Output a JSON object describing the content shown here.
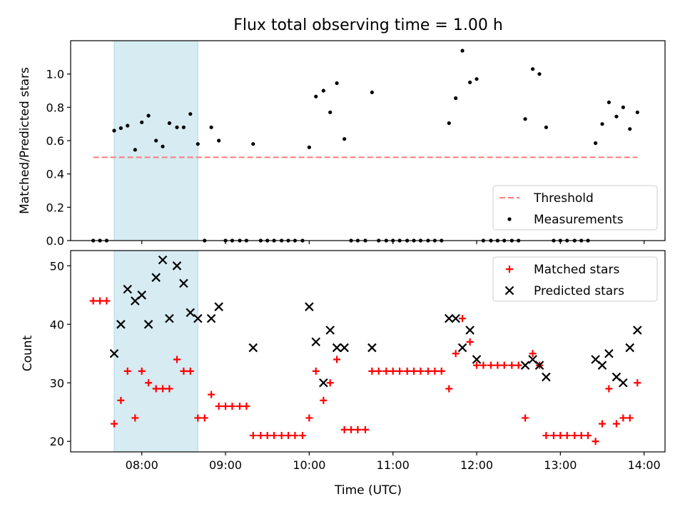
{
  "chart_data": [
    {
      "type": "scatter",
      "title": "Flux total observing time = 1.00 h",
      "xlabel": "",
      "ylabel": "Matched/Predicted stars",
      "xlim": [
        7.15,
        14.25
      ],
      "ylim": [
        0,
        1.2
      ],
      "yticks": [
        0.0,
        0.2,
        0.4,
        0.6,
        0.8,
        1.0
      ],
      "yticklabels": [
        "0.0",
        "0.2",
        "0.4",
        "0.6",
        "0.8",
        "1.0"
      ],
      "shaded_region": [
        7.67,
        8.67
      ],
      "threshold": {
        "name": "Threshold",
        "value": 0.5,
        "x_range": [
          7.42,
          13.92
        ],
        "color": "#f87d78"
      },
      "legend": {
        "position": "lower-right",
        "entries": [
          "Threshold",
          "Measurements"
        ]
      },
      "series": [
        {
          "name": "Measurements",
          "color": "#000000",
          "marker": "dot",
          "x": [
            7.42,
            7.5,
            7.58,
            7.67,
            7.75,
            7.83,
            7.92,
            8.0,
            8.08,
            8.17,
            8.25,
            8.33,
            8.42,
            8.5,
            8.58,
            8.67,
            8.75,
            8.83,
            8.92,
            9.0,
            9.08,
            9.17,
            9.25,
            9.33,
            9.42,
            9.5,
            9.58,
            9.67,
            9.75,
            9.83,
            9.92,
            10.0,
            10.08,
            10.17,
            10.25,
            10.33,
            10.42,
            10.5,
            10.58,
            10.67,
            10.75,
            10.83,
            10.92,
            11.0,
            11.08,
            11.17,
            11.25,
            11.33,
            11.42,
            11.5,
            11.58,
            11.67,
            11.75,
            11.83,
            11.92,
            12.0,
            12.08,
            12.17,
            12.25,
            12.33,
            12.42,
            12.5,
            12.58,
            12.67,
            12.75,
            12.83,
            12.92,
            13.0,
            13.08,
            13.17,
            13.25,
            13.33,
            13.42,
            13.5,
            13.58,
            13.67,
            13.75,
            13.83,
            13.92
          ],
          "y": [
            0.0,
            0.0,
            0.0,
            0.66,
            0.675,
            0.69,
            0.545,
            0.71,
            0.75,
            0.6,
            0.565,
            0.705,
            0.68,
            0.68,
            0.76,
            0.58,
            0.0,
            0.68,
            0.6,
            0.0,
            0.0,
            0.0,
            0.0,
            0.58,
            0.0,
            0.0,
            0.0,
            0.0,
            0.0,
            0.0,
            0.0,
            0.56,
            0.865,
            0.9,
            0.77,
            0.945,
            0.61,
            0.0,
            0.0,
            0.0,
            0.89,
            0.0,
            0.0,
            0.0,
            0.0,
            0.0,
            0.0,
            0.0,
            0.0,
            0.0,
            0.0,
            0.705,
            0.855,
            1.14,
            0.95,
            0.97,
            0.0,
            0.0,
            0.0,
            0.0,
            0.0,
            0.0,
            0.73,
            1.03,
            1.0,
            0.68,
            0.0,
            0.0,
            0.0,
            0.0,
            0.0,
            0.0,
            0.585,
            0.7,
            0.83,
            0.745,
            0.8,
            0.67,
            0.77
          ]
        }
      ]
    },
    {
      "type": "scatter",
      "title": "",
      "xlabel": "Time (UTC)",
      "ylabel": "Count",
      "xlim": [
        7.15,
        14.25
      ],
      "ylim": [
        18.2,
        52.6
      ],
      "yticks": [
        20,
        30,
        40,
        50
      ],
      "yticklabels": [
        "20",
        "30",
        "40",
        "50"
      ],
      "xticks": [
        8,
        9,
        10,
        11,
        12,
        13,
        14
      ],
      "xticklabels": [
        "08:00",
        "09:00",
        "10:00",
        "11:00",
        "12:00",
        "13:00",
        "14:00"
      ],
      "shaded_region": [
        7.67,
        8.67
      ],
      "legend": {
        "position": "top-right",
        "entries": [
          "Matched stars",
          "Predicted stars"
        ]
      },
      "series": [
        {
          "name": "Matched stars",
          "color": "#ff0000",
          "marker": "plus",
          "x": [
            7.42,
            7.5,
            7.58,
            7.67,
            7.75,
            7.83,
            7.92,
            8.0,
            8.08,
            8.17,
            8.25,
            8.33,
            8.42,
            8.5,
            8.58,
            8.67,
            8.75,
            8.83,
            8.92,
            9.0,
            9.08,
            9.17,
            9.25,
            9.33,
            9.42,
            9.5,
            9.58,
            9.67,
            9.75,
            9.83,
            9.92,
            10.0,
            10.08,
            10.17,
            10.25,
            10.33,
            10.42,
            10.5,
            10.58,
            10.67,
            10.75,
            10.83,
            10.92,
            11.0,
            11.08,
            11.17,
            11.25,
            11.33,
            11.42,
            11.5,
            11.58,
            11.67,
            11.75,
            11.83,
            11.92,
            12.0,
            12.08,
            12.17,
            12.25,
            12.33,
            12.42,
            12.5,
            12.58,
            12.67,
            12.75,
            12.83,
            12.92,
            13.0,
            13.08,
            13.17,
            13.25,
            13.33,
            13.42,
            13.5,
            13.58,
            13.67,
            13.75,
            13.83,
            13.92
          ],
          "y": [
            44,
            44,
            44,
            23,
            27,
            32,
            24,
            32,
            30,
            29,
            29,
            29,
            34,
            32,
            32,
            24,
            24,
            28,
            26,
            26,
            26,
            26,
            26,
            21,
            21,
            21,
            21,
            21,
            21,
            21,
            21,
            24,
            32,
            27,
            30,
            34,
            22,
            22,
            22,
            22,
            32,
            32,
            32,
            32,
            32,
            32,
            32,
            32,
            32,
            32,
            32,
            29,
            35,
            41,
            37,
            33,
            33,
            33,
            33,
            33,
            33,
            33,
            24,
            35,
            33,
            21,
            21,
            21,
            21,
            21,
            21,
            21,
            20,
            23,
            29,
            23,
            24,
            24,
            30
          ]
        },
        {
          "name": "Predicted stars",
          "color": "#000000",
          "marker": "x",
          "x": [
            7.67,
            7.75,
            7.83,
            7.92,
            8.0,
            8.08,
            8.17,
            8.25,
            8.33,
            8.42,
            8.5,
            8.58,
            8.67,
            8.83,
            8.92,
            9.33,
            10.0,
            10.08,
            10.17,
            10.25,
            10.33,
            10.42,
            10.75,
            11.67,
            11.75,
            11.83,
            11.92,
            12.0,
            12.58,
            12.67,
            12.75,
            12.83,
            13.42,
            13.5,
            13.58,
            13.67,
            13.75,
            13.83,
            13.92
          ],
          "y": [
            35,
            40,
            46,
            44,
            45,
            40,
            48,
            51,
            41,
            50,
            47,
            42,
            41,
            41,
            43,
            36,
            43,
            37,
            30,
            39,
            36,
            36,
            36,
            41,
            41,
            36,
            39,
            34,
            33,
            34,
            33,
            31,
            34,
            33,
            35,
            31,
            30,
            36,
            39
          ]
        }
      ]
    }
  ]
}
